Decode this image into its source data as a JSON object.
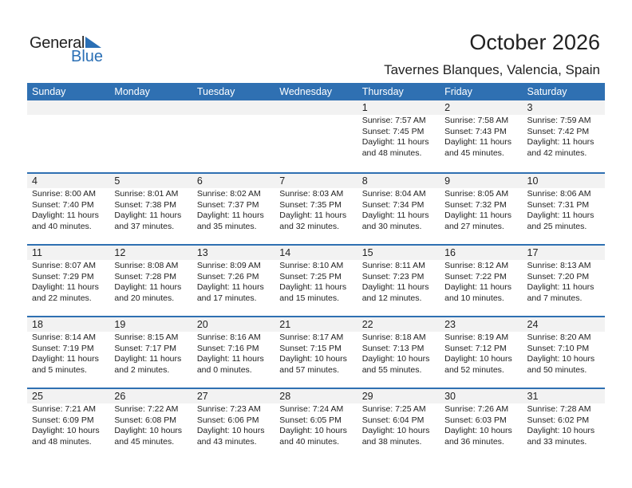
{
  "logo": {
    "text1": "General",
    "text2": "Blue"
  },
  "title": "October 2026",
  "subtitle": "Tavernes Blanques, Valencia, Spain",
  "colors": {
    "header": "#2f70b2",
    "day_band": "#f2f2f2",
    "logo_blue": "#2a6fb5"
  },
  "weekdays": [
    "Sunday",
    "Monday",
    "Tuesday",
    "Wednesday",
    "Thursday",
    "Friday",
    "Saturday"
  ],
  "weeks": [
    [
      null,
      null,
      null,
      null,
      {
        "day": "1",
        "sunrise": "Sunrise: 7:57 AM",
        "sunset": "Sunset: 7:45 PM",
        "daylight1": "Daylight: 11 hours",
        "daylight2": "and 48 minutes."
      },
      {
        "day": "2",
        "sunrise": "Sunrise: 7:58 AM",
        "sunset": "Sunset: 7:43 PM",
        "daylight1": "Daylight: 11 hours",
        "daylight2": "and 45 minutes."
      },
      {
        "day": "3",
        "sunrise": "Sunrise: 7:59 AM",
        "sunset": "Sunset: 7:42 PM",
        "daylight1": "Daylight: 11 hours",
        "daylight2": "and 42 minutes."
      }
    ],
    [
      {
        "day": "4",
        "sunrise": "Sunrise: 8:00 AM",
        "sunset": "Sunset: 7:40 PM",
        "daylight1": "Daylight: 11 hours",
        "daylight2": "and 40 minutes."
      },
      {
        "day": "5",
        "sunrise": "Sunrise: 8:01 AM",
        "sunset": "Sunset: 7:38 PM",
        "daylight1": "Daylight: 11 hours",
        "daylight2": "and 37 minutes."
      },
      {
        "day": "6",
        "sunrise": "Sunrise: 8:02 AM",
        "sunset": "Sunset: 7:37 PM",
        "daylight1": "Daylight: 11 hours",
        "daylight2": "and 35 minutes."
      },
      {
        "day": "7",
        "sunrise": "Sunrise: 8:03 AM",
        "sunset": "Sunset: 7:35 PM",
        "daylight1": "Daylight: 11 hours",
        "daylight2": "and 32 minutes."
      },
      {
        "day": "8",
        "sunrise": "Sunrise: 8:04 AM",
        "sunset": "Sunset: 7:34 PM",
        "daylight1": "Daylight: 11 hours",
        "daylight2": "and 30 minutes."
      },
      {
        "day": "9",
        "sunrise": "Sunrise: 8:05 AM",
        "sunset": "Sunset: 7:32 PM",
        "daylight1": "Daylight: 11 hours",
        "daylight2": "and 27 minutes."
      },
      {
        "day": "10",
        "sunrise": "Sunrise: 8:06 AM",
        "sunset": "Sunset: 7:31 PM",
        "daylight1": "Daylight: 11 hours",
        "daylight2": "and 25 minutes."
      }
    ],
    [
      {
        "day": "11",
        "sunrise": "Sunrise: 8:07 AM",
        "sunset": "Sunset: 7:29 PM",
        "daylight1": "Daylight: 11 hours",
        "daylight2": "and 22 minutes."
      },
      {
        "day": "12",
        "sunrise": "Sunrise: 8:08 AM",
        "sunset": "Sunset: 7:28 PM",
        "daylight1": "Daylight: 11 hours",
        "daylight2": "and 20 minutes."
      },
      {
        "day": "13",
        "sunrise": "Sunrise: 8:09 AM",
        "sunset": "Sunset: 7:26 PM",
        "daylight1": "Daylight: 11 hours",
        "daylight2": "and 17 minutes."
      },
      {
        "day": "14",
        "sunrise": "Sunrise: 8:10 AM",
        "sunset": "Sunset: 7:25 PM",
        "daylight1": "Daylight: 11 hours",
        "daylight2": "and 15 minutes."
      },
      {
        "day": "15",
        "sunrise": "Sunrise: 8:11 AM",
        "sunset": "Sunset: 7:23 PM",
        "daylight1": "Daylight: 11 hours",
        "daylight2": "and 12 minutes."
      },
      {
        "day": "16",
        "sunrise": "Sunrise: 8:12 AM",
        "sunset": "Sunset: 7:22 PM",
        "daylight1": "Daylight: 11 hours",
        "daylight2": "and 10 minutes."
      },
      {
        "day": "17",
        "sunrise": "Sunrise: 8:13 AM",
        "sunset": "Sunset: 7:20 PM",
        "daylight1": "Daylight: 11 hours",
        "daylight2": "and 7 minutes."
      }
    ],
    [
      {
        "day": "18",
        "sunrise": "Sunrise: 8:14 AM",
        "sunset": "Sunset: 7:19 PM",
        "daylight1": "Daylight: 11 hours",
        "daylight2": "and 5 minutes."
      },
      {
        "day": "19",
        "sunrise": "Sunrise: 8:15 AM",
        "sunset": "Sunset: 7:17 PM",
        "daylight1": "Daylight: 11 hours",
        "daylight2": "and 2 minutes."
      },
      {
        "day": "20",
        "sunrise": "Sunrise: 8:16 AM",
        "sunset": "Sunset: 7:16 PM",
        "daylight1": "Daylight: 11 hours",
        "daylight2": "and 0 minutes."
      },
      {
        "day": "21",
        "sunrise": "Sunrise: 8:17 AM",
        "sunset": "Sunset: 7:15 PM",
        "daylight1": "Daylight: 10 hours",
        "daylight2": "and 57 minutes."
      },
      {
        "day": "22",
        "sunrise": "Sunrise: 8:18 AM",
        "sunset": "Sunset: 7:13 PM",
        "daylight1": "Daylight: 10 hours",
        "daylight2": "and 55 minutes."
      },
      {
        "day": "23",
        "sunrise": "Sunrise: 8:19 AM",
        "sunset": "Sunset: 7:12 PM",
        "daylight1": "Daylight: 10 hours",
        "daylight2": "and 52 minutes."
      },
      {
        "day": "24",
        "sunrise": "Sunrise: 8:20 AM",
        "sunset": "Sunset: 7:10 PM",
        "daylight1": "Daylight: 10 hours",
        "daylight2": "and 50 minutes."
      }
    ],
    [
      {
        "day": "25",
        "sunrise": "Sunrise: 7:21 AM",
        "sunset": "Sunset: 6:09 PM",
        "daylight1": "Daylight: 10 hours",
        "daylight2": "and 48 minutes."
      },
      {
        "day": "26",
        "sunrise": "Sunrise: 7:22 AM",
        "sunset": "Sunset: 6:08 PM",
        "daylight1": "Daylight: 10 hours",
        "daylight2": "and 45 minutes."
      },
      {
        "day": "27",
        "sunrise": "Sunrise: 7:23 AM",
        "sunset": "Sunset: 6:06 PM",
        "daylight1": "Daylight: 10 hours",
        "daylight2": "and 43 minutes."
      },
      {
        "day": "28",
        "sunrise": "Sunrise: 7:24 AM",
        "sunset": "Sunset: 6:05 PM",
        "daylight1": "Daylight: 10 hours",
        "daylight2": "and 40 minutes."
      },
      {
        "day": "29",
        "sunrise": "Sunrise: 7:25 AM",
        "sunset": "Sunset: 6:04 PM",
        "daylight1": "Daylight: 10 hours",
        "daylight2": "and 38 minutes."
      },
      {
        "day": "30",
        "sunrise": "Sunrise: 7:26 AM",
        "sunset": "Sunset: 6:03 PM",
        "daylight1": "Daylight: 10 hours",
        "daylight2": "and 36 minutes."
      },
      {
        "day": "31",
        "sunrise": "Sunrise: 7:28 AM",
        "sunset": "Sunset: 6:02 PM",
        "daylight1": "Daylight: 10 hours",
        "daylight2": "and 33 minutes."
      }
    ]
  ]
}
